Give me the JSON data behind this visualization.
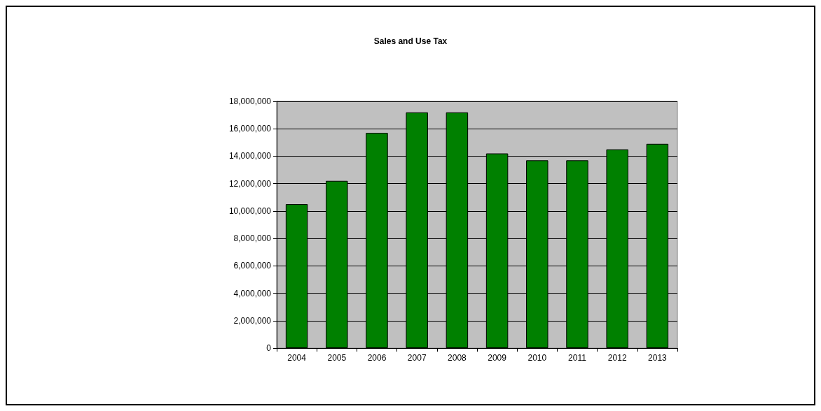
{
  "chart_data": {
    "type": "bar",
    "title": "Sales and Use Tax",
    "categories": [
      "2004",
      "2005",
      "2006",
      "2007",
      "2008",
      "2009",
      "2010",
      "2011",
      "2012",
      "2013"
    ],
    "values": [
      10500000,
      12200000,
      15700000,
      17200000,
      17200000,
      14200000,
      13700000,
      13700000,
      14500000,
      14900000
    ],
    "color": "#008000",
    "ylim": [
      0,
      18000000
    ],
    "yticks": [
      0,
      {
        "value": 2000000,
        "label": "2,000,000"
      },
      {
        "value": 4000000,
        "label": "4,000,000"
      },
      {
        "value": 6000000,
        "label": "6,000,000"
      },
      {
        "value": 8000000,
        "label": "8,000,000"
      },
      {
        "value": 10000000,
        "label": "10,000,000"
      },
      {
        "value": 12000000,
        "label": "12,000,000"
      },
      {
        "value": 14000000,
        "label": "14,000,000"
      },
      {
        "value": 16000000,
        "label": "16,000,000"
      },
      {
        "value": 18000000,
        "label": "18,000,000"
      }
    ],
    "grid": "y"
  }
}
